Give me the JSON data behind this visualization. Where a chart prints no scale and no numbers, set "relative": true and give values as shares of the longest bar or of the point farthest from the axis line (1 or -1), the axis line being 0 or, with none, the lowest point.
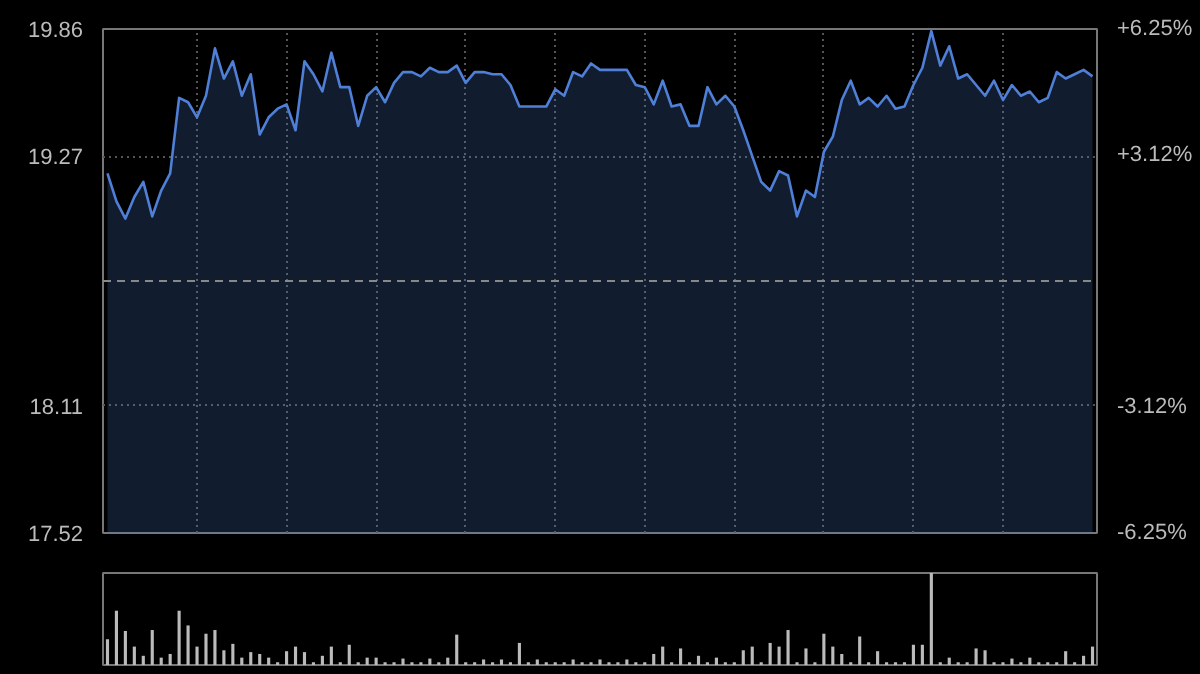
{
  "chart_data": [
    {
      "type": "area",
      "categories": [
        null,
        null,
        null,
        null,
        null,
        null,
        null,
        null,
        null,
        null,
        null,
        null,
        null,
        null,
        null,
        null,
        null,
        null,
        null,
        null,
        null,
        null,
        null,
        null,
        null,
        null,
        null,
        null,
        null,
        null,
        null,
        null,
        null,
        null,
        null,
        null,
        null,
        null,
        null,
        null,
        null,
        null,
        null,
        null,
        null,
        null,
        null,
        null,
        null,
        null,
        null,
        null,
        null,
        null,
        null,
        null,
        null,
        null,
        null,
        null,
        null,
        null,
        null,
        null,
        null,
        null,
        null,
        null,
        null,
        null,
        null,
        null,
        null,
        null,
        null,
        null,
        null,
        null,
        null,
        null,
        null,
        null,
        null,
        null,
        null,
        null,
        null,
        null,
        null,
        null,
        null,
        null,
        null,
        null,
        null,
        null,
        null,
        null,
        null,
        null,
        null,
        null,
        null,
        null,
        null,
        null,
        null,
        null,
        null,
        null,
        null
      ],
      "ylim": [
        17.52,
        19.86
      ],
      "yticks": [
        19.86,
        19.27,
        18.11,
        17.52
      ],
      "y2lim": [
        -6.25,
        6.25
      ],
      "y2ticks": [
        {
          "value": 6.25,
          "label": "+6.25%"
        },
        {
          "value": 3.12,
          "label": "+3.12%"
        },
        {
          "value": -3.12,
          "label": "-3.12%"
        },
        {
          "value": -6.25,
          "label": "-6.25%"
        }
      ],
      "ref_lines": [
        {
          "axis": "y",
          "value": 18.69,
          "line_style": "dashed",
          "color": "#888888"
        }
      ],
      "grid": true,
      "tick_labels": "y",
      "line_style": "solid",
      "series": [
        {
          "color": "#4f7fd6",
          "values": [
            19.19,
            19.06,
            18.98,
            19.08,
            19.15,
            18.99,
            19.11,
            19.19,
            19.54,
            19.52,
            19.45,
            19.55,
            19.77,
            19.63,
            19.71,
            19.55,
            19.65,
            19.37,
            19.45,
            19.49,
            19.51,
            19.39,
            19.71,
            19.65,
            19.57,
            19.75,
            19.59,
            19.59,
            19.41,
            19.55,
            19.59,
            19.52,
            19.61,
            19.66,
            19.66,
            19.64,
            19.68,
            19.66,
            19.66,
            19.69,
            19.61,
            19.66,
            19.66,
            19.65,
            19.65,
            19.6,
            19.5,
            19.5,
            19.5,
            19.5,
            19.58,
            19.55,
            19.66,
            19.64,
            19.7,
            19.67,
            19.67,
            19.67,
            19.67,
            19.6,
            19.59,
            19.51,
            19.62,
            19.5,
            19.51,
            19.41,
            19.41,
            19.59,
            19.51,
            19.55,
            19.5,
            19.39,
            19.27,
            19.15,
            19.11,
            19.2,
            19.18,
            18.99,
            19.11,
            19.08,
            19.29,
            19.36,
            19.53,
            19.62,
            19.51,
            19.54,
            19.5,
            19.55,
            19.49,
            19.5,
            19.6,
            19.68,
            19.85,
            19.69,
            19.78,
            19.63,
            19.65,
            19.6,
            19.55,
            19.62,
            19.53,
            19.6,
            19.55,
            19.57,
            19.52,
            19.54,
            19.66,
            19.63,
            19.65,
            19.67,
            19.64
          ]
        }
      ]
    },
    {
      "type": "bar",
      "relative": true,
      "tick_labels": false,
      "color": "#bbbbbb",
      "categories": [
        null,
        null,
        null,
        null,
        null,
        null,
        null,
        null,
        null,
        null,
        null,
        null,
        null,
        null,
        null,
        null,
        null,
        null,
        null,
        null,
        null,
        null,
        null,
        null,
        null,
        null,
        null,
        null,
        null,
        null,
        null,
        null,
        null,
        null,
        null,
        null,
        null,
        null,
        null,
        null,
        null,
        null,
        null,
        null,
        null,
        null,
        null,
        null,
        null,
        null,
        null,
        null,
        null,
        null,
        null,
        null,
        null,
        null,
        null,
        null,
        null,
        null,
        null,
        null,
        null,
        null,
        null,
        null,
        null,
        null,
        null,
        null,
        null,
        null,
        null,
        null,
        null,
        null,
        null,
        null,
        null,
        null,
        null,
        null,
        null,
        null,
        null,
        null,
        null,
        null,
        null,
        null,
        null,
        null,
        null,
        null,
        null,
        null,
        null,
        null,
        null,
        null,
        null,
        null,
        null,
        null,
        null,
        null,
        null,
        null,
        null
      ],
      "values": [
        0.28,
        0.59,
        0.37,
        0.2,
        0.1,
        0.38,
        0.08,
        0.12,
        0.59,
        0.43,
        0.2,
        0.34,
        0.38,
        0.16,
        0.23,
        0.08,
        0.14,
        0.12,
        0.08,
        0.03,
        0.15,
        0.2,
        0.14,
        0.03,
        0.1,
        0.2,
        0.03,
        0.22,
        0.03,
        0.08,
        0.08,
        0.03,
        0.03,
        0.07,
        0.03,
        0.03,
        0.07,
        0.03,
        0.08,
        0.33,
        0.03,
        0.03,
        0.06,
        0.03,
        0.06,
        0.03,
        0.24,
        0.03,
        0.06,
        0.03,
        0.03,
        0.03,
        0.06,
        0.03,
        0.03,
        0.06,
        0.03,
        0.03,
        0.06,
        0.03,
        0.03,
        0.12,
        0.2,
        0.03,
        0.18,
        0.03,
        0.1,
        0.03,
        0.08,
        0.03,
        0.03,
        0.16,
        0.2,
        0.03,
        0.24,
        0.2,
        0.38,
        0.03,
        0.18,
        0.03,
        0.34,
        0.2,
        0.12,
        0.03,
        0.31,
        0.03,
        0.15,
        0.03,
        0.03,
        0.03,
        0.22,
        0.22,
        1.0,
        0.03,
        0.08,
        0.03,
        0.03,
        0.18,
        0.16,
        0.03,
        0.03,
        0.07,
        0.03,
        0.08,
        0.03,
        0.03,
        0.03,
        0.15,
        0.03,
        0.1,
        0.2
      ]
    }
  ]
}
